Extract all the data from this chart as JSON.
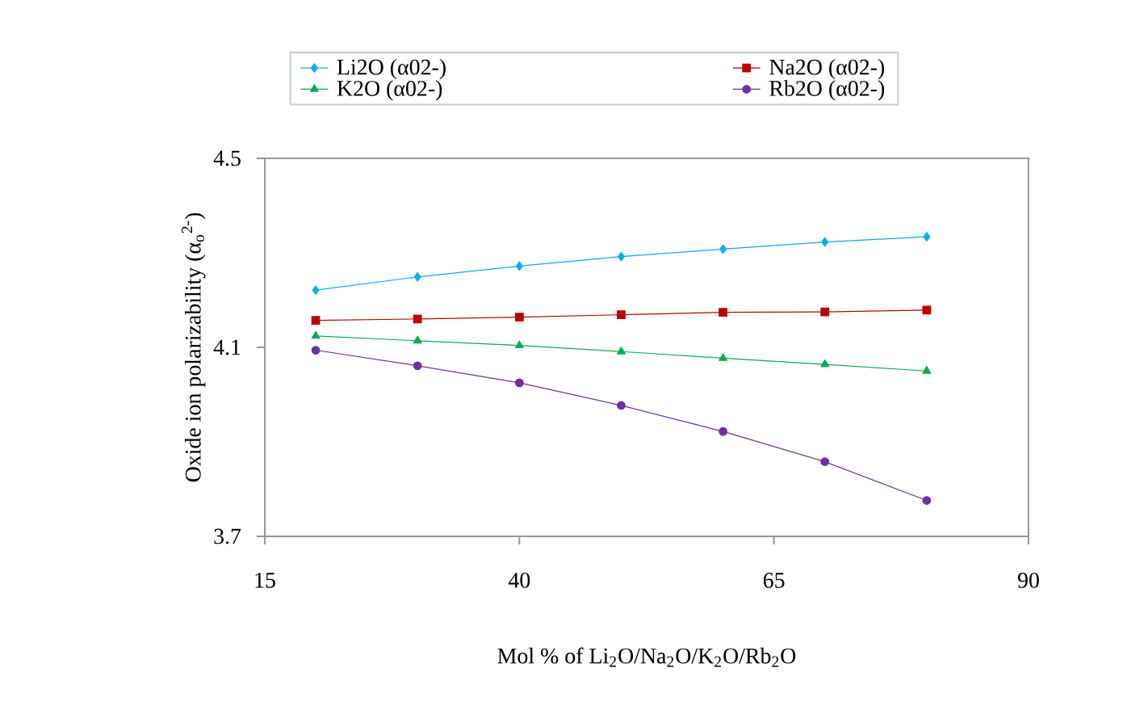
{
  "chart_data": {
    "type": "line",
    "xlabel": "Mol % of Li$_{2}$O/Na$_{2}$O/K$_{2}$O/Rb$_{2}$O",
    "ylabel": "Oxide ion polarizability (α$_{o}$$^{2-}$)",
    "x": [
      20,
      30,
      40,
      50,
      60,
      70,
      80
    ],
    "series": [
      {
        "name": "Li2O (α02-)",
        "color": "#00b0f0",
        "marker": "diamond",
        "values": [
          4.221,
          4.249,
          4.272,
          4.292,
          4.308,
          4.323,
          4.334
        ]
      },
      {
        "name": "Na2O (α02-)",
        "color": "#c00000",
        "marker": "square",
        "values": [
          4.157,
          4.16,
          4.164,
          4.169,
          4.174,
          4.175,
          4.179
        ]
      },
      {
        "name": "K2O (α02-)",
        "color": "#00b050",
        "marker": "triangle",
        "values": [
          4.124,
          4.114,
          4.104,
          4.091,
          4.077,
          4.064,
          4.05
        ]
      },
      {
        "name": "Rb2O (α02-)",
        "color": "#7030a0",
        "marker": "circle",
        "values": [
          4.094,
          4.061,
          4.025,
          3.977,
          3.922,
          3.858,
          3.776
        ]
      }
    ],
    "xlim": [
      15,
      90
    ],
    "ylim": [
      3.7,
      4.5
    ],
    "xticks": [
      15,
      40,
      65,
      90
    ],
    "yticks": [
      3.7,
      4.1,
      4.5
    ],
    "grid": false,
    "legend": "top",
    "line_style": "solid"
  }
}
